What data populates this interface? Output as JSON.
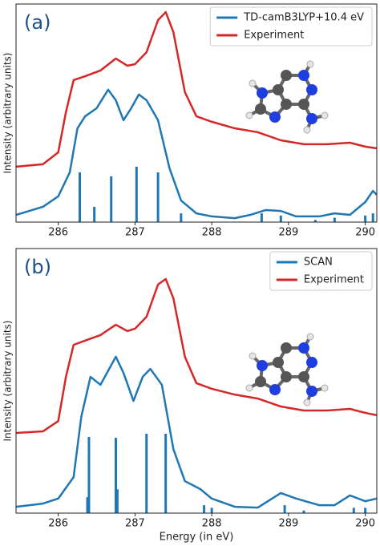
{
  "chart_data": [
    {
      "type": "line",
      "panel_label": "(a)",
      "ylabel": "Intensity (arbitrary units)",
      "xlim": [
        285.45,
        290.15
      ],
      "xticks": [
        286,
        287,
        288,
        289,
        290
      ],
      "ylim": [
        0,
        1
      ],
      "legend": "upper right",
      "series": [
        {
          "name": "TD-camB3LYP+10.4 eV",
          "color": "#1f77b4",
          "x": [
            285.45,
            285.8,
            286.0,
            286.15,
            286.25,
            286.35,
            286.5,
            286.65,
            286.75,
            286.85,
            286.95,
            287.05,
            287.15,
            287.3,
            287.45,
            287.6,
            287.8,
            288.0,
            288.3,
            288.5,
            288.7,
            288.9,
            289.1,
            289.4,
            289.6,
            289.8,
            290.0,
            290.1,
            290.15
          ],
          "values": [
            0.033,
            0.07,
            0.118,
            0.228,
            0.43,
            0.485,
            0.522,
            0.607,
            0.559,
            0.467,
            0.522,
            0.585,
            0.559,
            0.467,
            0.246,
            0.099,
            0.04,
            0.026,
            0.018,
            0.033,
            0.055,
            0.051,
            0.026,
            0.026,
            0.04,
            0.033,
            0.092,
            0.143,
            0.125
          ]
        },
        {
          "name": "Experiment",
          "color": "#d62728",
          "x": [
            285.45,
            285.8,
            286.0,
            286.1,
            286.2,
            286.35,
            286.55,
            286.75,
            286.9,
            287.0,
            287.15,
            287.3,
            287.4,
            287.5,
            287.65,
            287.8,
            288.0,
            288.3,
            288.6,
            288.9,
            289.2,
            289.5,
            289.8,
            290.0,
            290.15
          ],
          "values": [
            0.254,
            0.265,
            0.32,
            0.504,
            0.651,
            0.669,
            0.695,
            0.75,
            0.717,
            0.724,
            0.779,
            0.926,
            0.963,
            0.871,
            0.596,
            0.485,
            0.46,
            0.43,
            0.412,
            0.375,
            0.357,
            0.357,
            0.364,
            0.346,
            0.338
          ]
        }
      ],
      "sticks": {
        "color": "#1f77b4",
        "x": [
          286.28,
          286.47,
          286.69,
          287.02,
          287.3,
          287.6,
          288.65,
          288.9,
          289.35,
          289.6,
          290.0,
          290.1
        ],
        "values": [
          0.228,
          0.07,
          0.21,
          0.254,
          0.228,
          0.04,
          0.04,
          0.03,
          0.01,
          0.02,
          0.03,
          0.04
        ]
      }
    },
    {
      "type": "line",
      "panel_label": "(b)",
      "ylabel": "Intensity (arbitrary units)",
      "xlabel": "Energy (in eV)",
      "xlim": [
        285.45,
        290.15
      ],
      "xticks": [
        286,
        287,
        288,
        289,
        290
      ],
      "ylim": [
        0,
        1
      ],
      "legend": "upper right",
      "series": [
        {
          "name": "SCAN",
          "color": "#1f77b4",
          "x": [
            285.45,
            285.8,
            286.0,
            286.2,
            286.3,
            286.42,
            286.55,
            286.75,
            286.85,
            286.98,
            287.1,
            287.2,
            287.35,
            287.5,
            287.65,
            287.85,
            288.0,
            288.3,
            288.6,
            288.9,
            289.1,
            289.4,
            289.6,
            289.8,
            290.0,
            290.15
          ],
          "values": [
            0.024,
            0.036,
            0.055,
            0.136,
            0.364,
            0.515,
            0.485,
            0.591,
            0.53,
            0.424,
            0.515,
            0.545,
            0.485,
            0.242,
            0.121,
            0.091,
            0.055,
            0.024,
            0.021,
            0.076,
            0.055,
            0.03,
            0.03,
            0.067,
            0.045,
            0.055
          ]
        },
        {
          "name": "Experiment",
          "color": "#d62728",
          "x": [
            285.45,
            285.8,
            286.0,
            286.1,
            286.2,
            286.35,
            286.55,
            286.75,
            286.9,
            287.0,
            287.15,
            287.3,
            287.4,
            287.5,
            287.65,
            287.8,
            288.0,
            288.3,
            288.6,
            288.9,
            289.2,
            289.5,
            289.8,
            290.0,
            290.15
          ],
          "values": [
            0.303,
            0.309,
            0.348,
            0.515,
            0.636,
            0.652,
            0.673,
            0.712,
            0.688,
            0.697,
            0.742,
            0.864,
            0.885,
            0.812,
            0.591,
            0.491,
            0.47,
            0.448,
            0.433,
            0.403,
            0.388,
            0.388,
            0.394,
            0.379,
            0.37
          ]
        }
      ],
      "sticks": {
        "color": "#1f77b4",
        "x": [
          286.38,
          286.4,
          286.75,
          286.77,
          287.15,
          287.4,
          287.9,
          288.0,
          288.95,
          289.2,
          289.85,
          290.0
        ],
        "values": [
          0.06,
          0.288,
          0.285,
          0.09,
          0.3,
          0.3,
          0.03,
          0.02,
          0.03,
          0.01,
          0.02,
          0.02
        ]
      }
    }
  ]
}
